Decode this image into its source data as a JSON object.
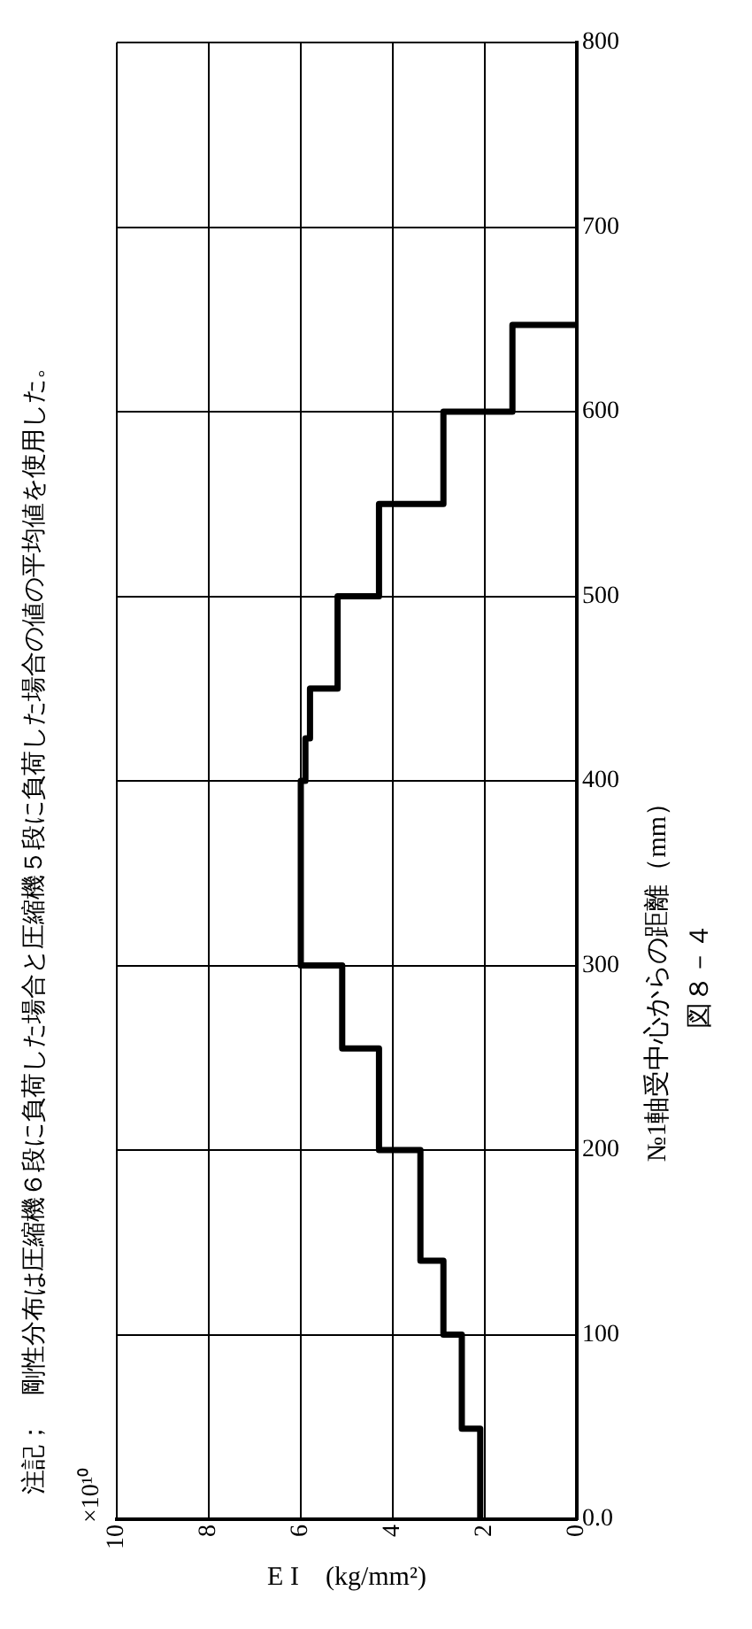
{
  "chart_data": {
    "type": "line",
    "xlabel": "E I　(kg/mm²)",
    "ylabel": "№1軸受中心からの距離（mm）",
    "annotations": [
      "注記；　剛性分布は圧縮機６段に負荷した場合と圧縮機５段に負荷した場合の値の平均値を使用した。",
      "×10¹⁰",
      "図８－４"
    ],
    "x": [
      2.1,
      2.1,
      2.5,
      2.5,
      2.9,
      2.9,
      3.4,
      3.4,
      4.3,
      4.3,
      5.1,
      5.1,
      6.0,
      6.0,
      5.9,
      5.9,
      5.8,
      5.8,
      5.2,
      5.2,
      4.3,
      4.3,
      2.9,
      2.9,
      1.4,
      1.4,
      0
    ],
    "values": [
      0,
      49,
      49,
      100,
      100,
      140,
      140,
      200,
      200,
      255,
      255,
      300,
      300,
      400,
      400,
      423,
      423,
      450,
      450,
      500,
      500,
      550,
      550,
      600,
      600,
      647,
      647
    ],
    "color": "#000000",
    "xlim": [
      10,
      0
    ],
    "xticks": [
      0,
      2,
      4,
      6,
      8,
      10
    ],
    "ylim": [
      0,
      800
    ],
    "yticks": [
      {
        "value": 0,
        "label": "0.0"
      },
      100,
      200,
      300,
      400,
      500,
      600,
      700,
      800
    ],
    "grid": true
  }
}
